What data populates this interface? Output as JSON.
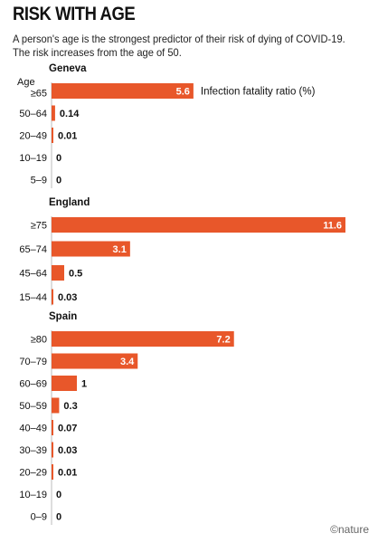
{
  "title": "RISK WITH AGE",
  "subtitle": "A person's age is the strongest predictor of their risk of dying of COVID-19. The risk increases from the age of 50.",
  "footer": "©nature",
  "colors": {
    "bar": "#e8572a",
    "label_inside": "#ffffff",
    "text": "#111111",
    "axis": "#bbbbbb"
  },
  "chart_data": {
    "type": "bar",
    "orientation": "horizontal",
    "measure_label": "Infection fatality ratio (%)",
    "axis_label": "Age",
    "xlim": [
      0,
      11.6
    ],
    "grid": false,
    "panels": [
      {
        "name": "Geneva",
        "categories": [
          "≥65",
          "50–64",
          "20–49",
          "10–19",
          "5–9"
        ],
        "values": [
          5.6,
          0.14,
          0.01,
          0,
          0
        ],
        "value_labels": [
          "5.6",
          "0.14",
          "0.01",
          "0",
          "0"
        ]
      },
      {
        "name": "England",
        "categories": [
          "≥75",
          "65–74",
          "45–64",
          "15–44"
        ],
        "values": [
          11.6,
          3.1,
          0.5,
          0.03
        ],
        "value_labels": [
          "11.6",
          "3.1",
          "0.5",
          "0.03"
        ]
      },
      {
        "name": "Spain",
        "categories": [
          "≥80",
          "70–79",
          "60–69",
          "50–59",
          "40–49",
          "30–39",
          "20–29",
          "10–19",
          "0–9"
        ],
        "values": [
          7.2,
          3.4,
          1,
          0.3,
          0.07,
          0.03,
          0.01,
          0,
          0
        ],
        "value_labels": [
          "7.2",
          "3.4",
          "1",
          "0.3",
          "0.07",
          "0.03",
          "0.01",
          "0",
          "0"
        ]
      }
    ]
  }
}
